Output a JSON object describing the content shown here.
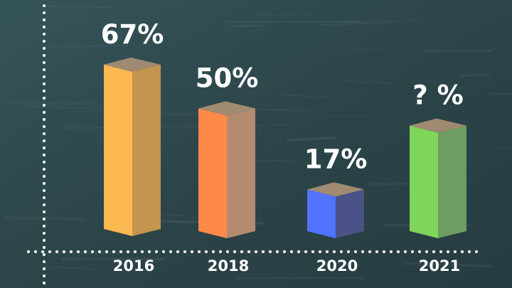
{
  "chart_data": {
    "type": "bar",
    "title": "",
    "xlabel": "",
    "ylabel": "",
    "categories": [
      "2016",
      "2018",
      "2020",
      "2021"
    ],
    "values": [
      67,
      50,
      17,
      null
    ],
    "value_labels": [
      "67%",
      "50%",
      "17%",
      "? %"
    ],
    "ylim": [
      0,
      100
    ],
    "grid": false,
    "legend": "none",
    "bar_colors": [
      "#fcb851",
      "#fd8a47",
      "#5173fd",
      "#7fd65a"
    ],
    "side_colors": [
      "#c3954f",
      "#b58b6f",
      "#4b5287",
      "#6d9d60"
    ],
    "top_color": "#a08a72"
  }
}
